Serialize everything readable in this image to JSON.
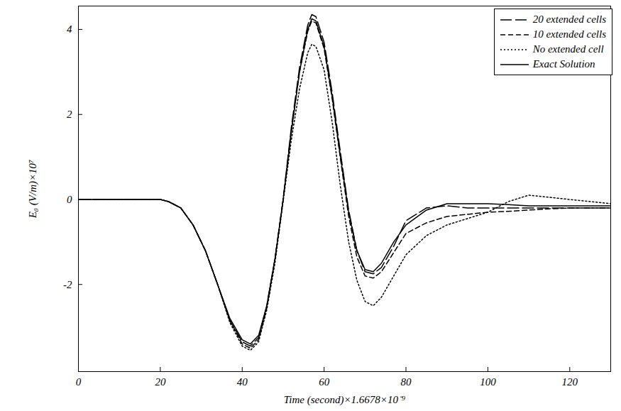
{
  "chart_data": {
    "type": "line",
    "x_label": "Time (second)×1.6678×10⁻⁹",
    "y_label": "E₀ (V/m)×10⁷",
    "x": [
      0,
      10,
      20,
      22,
      25,
      28,
      31,
      34,
      37,
      40,
      42,
      44,
      46,
      48,
      50,
      52,
      54,
      56,
      57,
      58,
      60,
      62,
      64,
      66,
      68,
      70,
      72,
      74,
      77,
      80,
      85,
      90,
      95,
      100,
      105,
      110,
      115,
      120,
      130
    ],
    "series": [
      {
        "name": "20 extended cells",
        "color": "#000000",
        "line_style": "long_dash",
        "values": [
          0,
          0,
          0,
          -0.05,
          -0.2,
          -0.6,
          -1.2,
          -2.0,
          -2.85,
          -3.35,
          -3.45,
          -3.25,
          -2.5,
          -1.4,
          0,
          1.7,
          3.1,
          4.1,
          4.35,
          4.3,
          3.7,
          2.5,
          1.1,
          -0.25,
          -1.2,
          -1.7,
          -1.75,
          -1.6,
          -1.1,
          -0.5,
          -0.2,
          -0.15,
          -0.2,
          -0.2,
          -0.2,
          -0.2,
          -0.2,
          -0.2,
          -0.2
        ]
      },
      {
        "name": "10 extended cells",
        "color": "#000000",
        "line_style": "dash",
        "values": [
          0,
          0,
          0,
          -0.05,
          -0.2,
          -0.6,
          -1.2,
          -2.0,
          -2.85,
          -3.4,
          -3.5,
          -3.3,
          -2.55,
          -1.4,
          0,
          1.6,
          3.0,
          3.95,
          4.2,
          4.15,
          3.55,
          2.35,
          0.95,
          -0.4,
          -1.35,
          -1.8,
          -1.85,
          -1.7,
          -1.25,
          -0.8,
          -0.55,
          -0.4,
          -0.35,
          -0.3,
          -0.28,
          -0.25,
          -0.22,
          -0.2,
          -0.2
        ]
      },
      {
        "name": "No extended cell",
        "color": "#000000",
        "line_style": "dot",
        "values": [
          0,
          0,
          0,
          -0.05,
          -0.2,
          -0.6,
          -1.2,
          -2.0,
          -2.9,
          -3.45,
          -3.55,
          -3.35,
          -2.6,
          -1.5,
          -0.05,
          1.4,
          2.6,
          3.45,
          3.65,
          3.6,
          3.05,
          1.8,
          0.3,
          -1.0,
          -1.9,
          -2.4,
          -2.5,
          -2.3,
          -1.8,
          -1.3,
          -0.85,
          -0.6,
          -0.45,
          -0.3,
          -0.05,
          0.1,
          0.05,
          0,
          -0.1
        ]
      },
      {
        "name": "Exact Solution",
        "color": "#000000",
        "line_style": "solid",
        "values": [
          0,
          0,
          0,
          -0.05,
          -0.2,
          -0.6,
          -1.2,
          -2.0,
          -2.8,
          -3.3,
          -3.4,
          -3.2,
          -2.5,
          -1.4,
          0,
          1.6,
          3.0,
          4.0,
          4.25,
          4.2,
          3.6,
          2.4,
          1.0,
          -0.3,
          -1.2,
          -1.65,
          -1.7,
          -1.5,
          -1.0,
          -0.6,
          -0.25,
          -0.1,
          -0.1,
          -0.1,
          -0.12,
          -0.15,
          -0.15,
          -0.15,
          -0.15
        ]
      }
    ],
    "xlim": [
      0,
      130
    ],
    "xticks": [
      0,
      20,
      40,
      60,
      80,
      100,
      120
    ],
    "ylim": [
      -4.05,
      4.55
    ],
    "yticks": [
      -2,
      0,
      2,
      4
    ],
    "grid": false,
    "legend": "upper right"
  }
}
